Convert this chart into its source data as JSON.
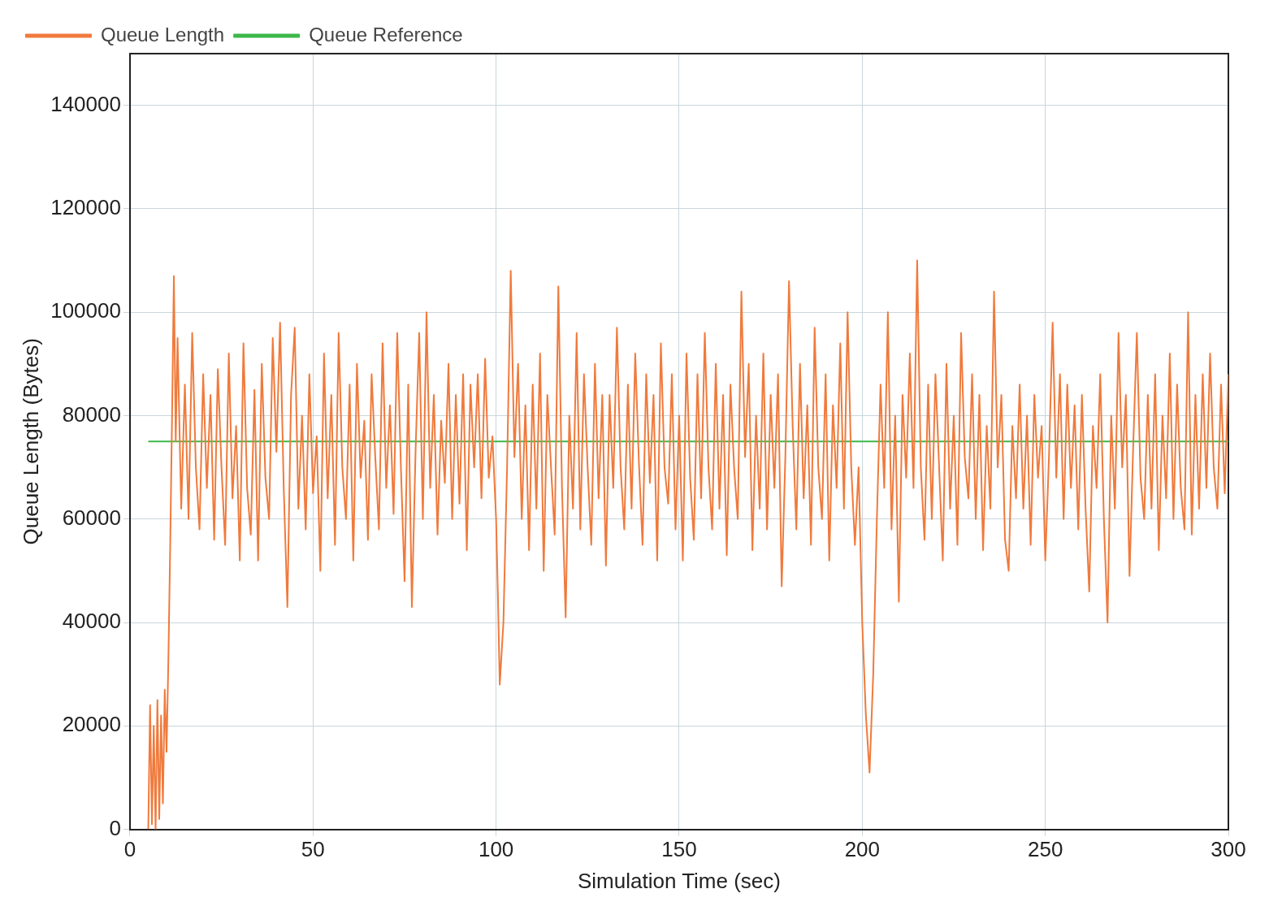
{
  "chart_data": {
    "type": "line",
    "xlabel": "Simulation Time (sec)",
    "ylabel": "Queue Length (Bytes)",
    "xlim": [
      0,
      300
    ],
    "xticks": [
      0,
      50,
      100,
      150,
      200,
      250,
      300
    ],
    "ylim": [
      0,
      150000
    ],
    "yticks": [
      0,
      20000,
      40000,
      60000,
      80000,
      100000,
      120000,
      140000
    ],
    "grid": true,
    "legend": "top left",
    "marker": "none",
    "line_style": "solid",
    "series": [
      {
        "name": "Queue Length",
        "color": "#f07a3c",
        "x": [
          5,
          5.5,
          6,
          6.5,
          7,
          7.5,
          8,
          8.5,
          9,
          9.5,
          10,
          10.5,
          11,
          11.5,
          12,
          12.5,
          13,
          14,
          15,
          16,
          17,
          18,
          19,
          20,
          21,
          22,
          23,
          24,
          25,
          26,
          27,
          28,
          29,
          30,
          31,
          32,
          33,
          34,
          35,
          36,
          37,
          38,
          39,
          40,
          41,
          42,
          43,
          44,
          45,
          46,
          47,
          48,
          49,
          50,
          51,
          52,
          53,
          54,
          55,
          56,
          57,
          58,
          59,
          60,
          61,
          62,
          63,
          64,
          65,
          66,
          67,
          68,
          69,
          70,
          71,
          72,
          73,
          74,
          75,
          76,
          77,
          78,
          79,
          80,
          81,
          82,
          83,
          84,
          85,
          86,
          87,
          88,
          89,
          90,
          91,
          92,
          93,
          94,
          95,
          96,
          97,
          98,
          99,
          100,
          100.5,
          101,
          102,
          103,
          104,
          105,
          106,
          107,
          108,
          109,
          110,
          111,
          112,
          113,
          114,
          115,
          116,
          117,
          118,
          119,
          120,
          121,
          122,
          123,
          124,
          125,
          126,
          127,
          128,
          129,
          130,
          131,
          132,
          133,
          134,
          135,
          136,
          137,
          138,
          139,
          140,
          141,
          142,
          143,
          144,
          145,
          146,
          147,
          148,
          149,
          150,
          151,
          152,
          153,
          154,
          155,
          156,
          157,
          158,
          159,
          160,
          161,
          162,
          163,
          164,
          165,
          166,
          167,
          168,
          169,
          170,
          171,
          172,
          173,
          174,
          175,
          176,
          177,
          178,
          179,
          180,
          181,
          182,
          183,
          184,
          185,
          186,
          187,
          188,
          189,
          190,
          191,
          192,
          193,
          194,
          195,
          196,
          197,
          198,
          199,
          200,
          201,
          202,
          203,
          204,
          205,
          206,
          207,
          208,
          209,
          210,
          211,
          212,
          213,
          214,
          215,
          216,
          217,
          218,
          219,
          220,
          221,
          222,
          223,
          224,
          225,
          226,
          227,
          228,
          229,
          230,
          231,
          232,
          233,
          234,
          235,
          236,
          237,
          238,
          239,
          240,
          241,
          242,
          243,
          244,
          245,
          246,
          247,
          248,
          249,
          250,
          251,
          252,
          253,
          254,
          255,
          256,
          257,
          258,
          259,
          260,
          261,
          262,
          263,
          264,
          265,
          266,
          267,
          268,
          269,
          270,
          271,
          272,
          273,
          274,
          275,
          276,
          277,
          278,
          279,
          280,
          281,
          282,
          283,
          284,
          285,
          286,
          287,
          288,
          289,
          290,
          291,
          292,
          293,
          294,
          295,
          296,
          297,
          298,
          299,
          300
        ],
        "values": [
          0,
          24000,
          1000,
          20000,
          0,
          25000,
          2000,
          22000,
          5000,
          27000,
          15000,
          33000,
          55000,
          80000,
          107000,
          75000,
          95000,
          62000,
          86000,
          60000,
          96000,
          70000,
          58000,
          88000,
          66000,
          84000,
          56000,
          89000,
          70000,
          55000,
          92000,
          64000,
          78000,
          52000,
          94000,
          66000,
          57000,
          85000,
          52000,
          90000,
          68000,
          60000,
          95000,
          73000,
          98000,
          66000,
          43000,
          84000,
          97000,
          62000,
          80000,
          58000,
          88000,
          65000,
          76000,
          50000,
          92000,
          64000,
          84000,
          55000,
          96000,
          70000,
          60000,
          86000,
          52000,
          90000,
          68000,
          79000,
          56000,
          88000,
          72000,
          58000,
          94000,
          66000,
          82000,
          61000,
          96000,
          70000,
          48000,
          86000,
          43000,
          73000,
          96000,
          60000,
          100000,
          66000,
          84000,
          57000,
          79000,
          67000,
          90000,
          60000,
          84000,
          63000,
          88000,
          54000,
          86000,
          70000,
          88000,
          64000,
          91000,
          68000,
          76000,
          60000,
          45000,
          28000,
          40000,
          70000,
          108000,
          72000,
          90000,
          60000,
          82000,
          54000,
          86000,
          62000,
          92000,
          50000,
          84000,
          70000,
          57000,
          105000,
          66000,
          41000,
          80000,
          62000,
          96000,
          58000,
          88000,
          70000,
          55000,
          90000,
          64000,
          84000,
          51000,
          84000,
          66000,
          97000,
          70000,
          58000,
          86000,
          62000,
          92000,
          71000,
          55000,
          88000,
          67000,
          84000,
          52000,
          94000,
          70000,
          63000,
          88000,
          58000,
          80000,
          52000,
          92000,
          68000,
          56000,
          88000,
          64000,
          96000,
          70000,
          58000,
          90000,
          62000,
          84000,
          53000,
          86000,
          70000,
          60000,
          104000,
          72000,
          90000,
          54000,
          80000,
          62000,
          92000,
          58000,
          84000,
          66000,
          88000,
          47000,
          72000,
          106000,
          78000,
          58000,
          90000,
          64000,
          82000,
          55000,
          97000,
          70000,
          60000,
          88000,
          52000,
          82000,
          66000,
          94000,
          62000,
          100000,
          70000,
          55000,
          70000,
          40000,
          22000,
          11000,
          30000,
          60000,
          86000,
          66000,
          100000,
          58000,
          80000,
          44000,
          84000,
          68000,
          92000,
          66000,
          110000,
          70000,
          56000,
          86000,
          60000,
          88000,
          70000,
          52000,
          90000,
          62000,
          80000,
          55000,
          96000,
          72000,
          64000,
          88000,
          60000,
          84000,
          54000,
          78000,
          62000,
          104000,
          70000,
          84000,
          56000,
          50000,
          78000,
          64000,
          86000,
          62000,
          80000,
          55000,
          84000,
          68000,
          78000,
          52000,
          72000,
          98000,
          68000,
          88000,
          60000,
          86000,
          66000,
          82000,
          58000,
          84000,
          62000,
          46000,
          78000,
          66000,
          88000,
          60000,
          40000,
          80000,
          62000,
          96000,
          70000,
          84000,
          49000,
          74000,
          96000,
          68000,
          60000,
          84000,
          62000,
          88000,
          54000,
          80000,
          64000,
          92000,
          60000,
          86000,
          66000,
          58000,
          100000,
          57000,
          84000,
          62000,
          88000,
          66000,
          92000,
          70000,
          62000,
          86000,
          65000,
          88000
        ]
      },
      {
        "name": "Queue Reference",
        "color": "#3cb84a",
        "x": [
          5,
          300
        ],
        "values": [
          75000,
          75000
        ]
      }
    ]
  }
}
